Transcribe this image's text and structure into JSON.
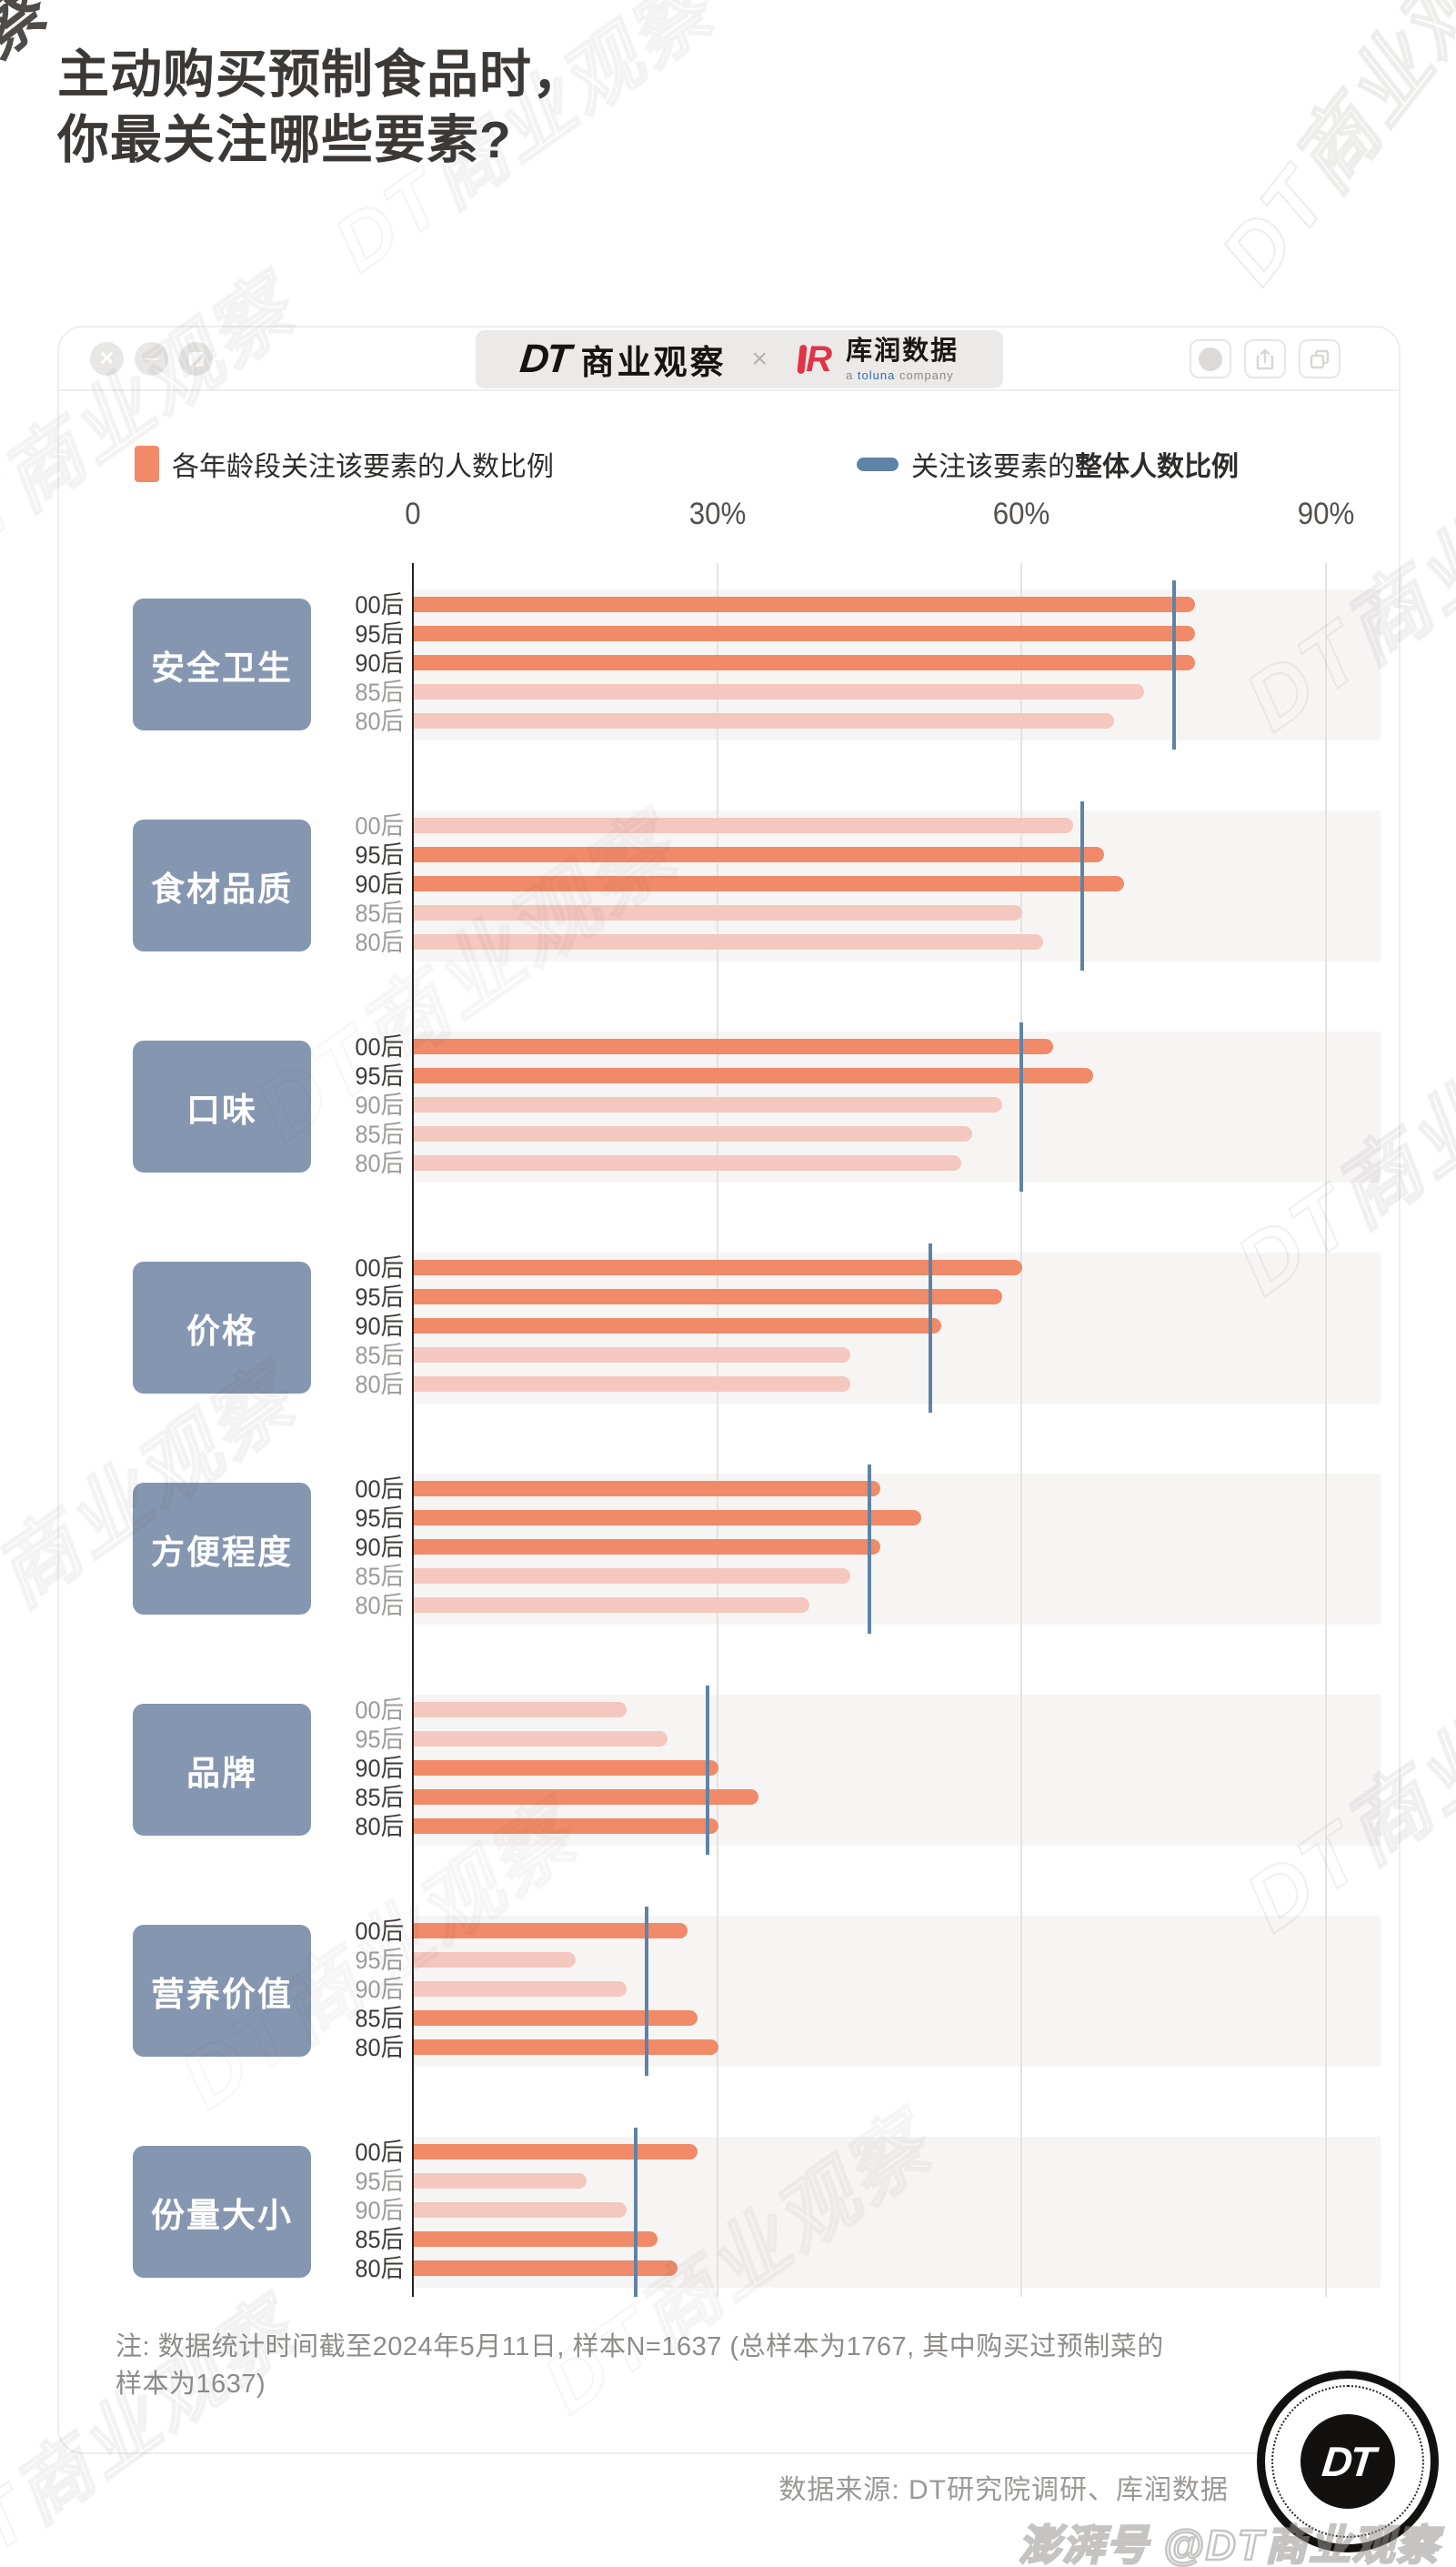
{
  "page": {
    "title_line1": "主动购买预制食品时，",
    "title_line2": "你最关注哪些要素?",
    "watermark": "DT商业观察"
  },
  "header": {
    "brand_dt": "DT",
    "brand_name": "商业观察",
    "separator": "×",
    "partner_mark": "R",
    "partner_name": "库润数据",
    "partner_sub_a": "a ",
    "partner_sub_toluna": "toluna",
    "partner_sub_company": " company"
  },
  "legend": {
    "age_label": "各年龄段关注该要素的人数比例",
    "overall_label_prefix": "关注该要素的",
    "overall_label_bold": "整体人数比例"
  },
  "chart_data": {
    "type": "bar",
    "orientation": "horizontal",
    "unit": "%",
    "x_max": 90,
    "grid": true,
    "x_ticks": [
      {
        "label": "0",
        "value": 0
      },
      {
        "label": "30%",
        "value": 30
      },
      {
        "label": "60%",
        "value": 60
      },
      {
        "label": "90%",
        "value": 90
      }
    ],
    "age_groups": [
      "00后",
      "95后",
      "90后",
      "85后",
      "80后"
    ],
    "colors": {
      "above_overall": "#F08A68",
      "below_overall": "#F4C7BF",
      "overall_line": "#5F83A6",
      "category_box": "#8596B0"
    },
    "categories": [
      {
        "label": "安全卫生",
        "values": [
          77,
          77,
          77,
          72,
          69
        ],
        "overall": 75
      },
      {
        "label": "食材品质",
        "values": [
          65,
          68,
          70,
          60,
          62
        ],
        "overall": 66
      },
      {
        "label": "口味",
        "values": [
          63,
          67,
          58,
          55,
          54
        ],
        "overall": 60
      },
      {
        "label": "价格",
        "values": [
          60,
          58,
          52,
          43,
          43
        ],
        "overall": 51
      },
      {
        "label": "方便程度",
        "values": [
          46,
          50,
          46,
          43,
          39
        ],
        "overall": 45
      },
      {
        "label": "品牌",
        "values": [
          21,
          25,
          30,
          34,
          30
        ],
        "overall": 29
      },
      {
        "label": "营养价值",
        "values": [
          27,
          16,
          21,
          28,
          30
        ],
        "overall": 23
      },
      {
        "label": "份量大小",
        "values": [
          28,
          17,
          21,
          24,
          26
        ],
        "overall": 22
      }
    ]
  },
  "footer": {
    "note_line1": "注: 数据统计时间截至2024年5月11日, 样本N=1637 (总样本为1767, 其中购买过预制菜的",
    "note_line2": "样本为1637)",
    "source": "数据来源: DT研究院调研、库润数据",
    "badge_text": "DT",
    "bottom_watermark_prefix": "澎湃号 ",
    "bottom_watermark": "@DT商业观察"
  }
}
